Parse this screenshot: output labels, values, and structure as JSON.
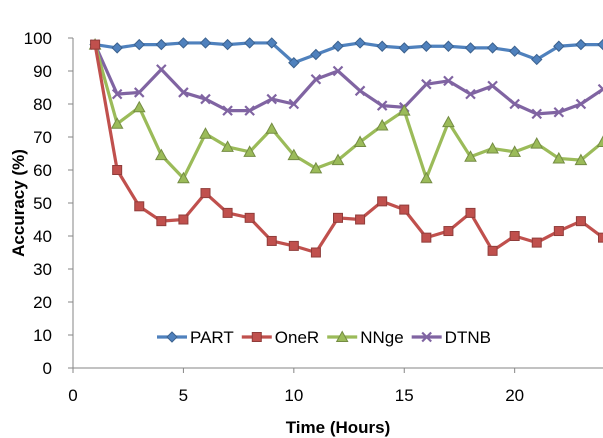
{
  "chart_data": {
    "type": "line",
    "title": "",
    "xlabel": "Time (Hours)",
    "ylabel": "Accuracy (%)",
    "xlim": [
      0,
      24
    ],
    "ylim": [
      0,
      100
    ],
    "xticks": [
      0,
      5,
      10,
      15,
      20
    ],
    "yticks": [
      0,
      10,
      20,
      30,
      40,
      50,
      60,
      70,
      80,
      90,
      100
    ],
    "grid": false,
    "legend": "inside-bottom",
    "x": [
      1,
      2,
      3,
      4,
      5,
      6,
      7,
      8,
      9,
      10,
      11,
      12,
      13,
      14,
      15,
      16,
      17,
      18,
      19,
      20,
      21,
      22,
      23,
      24
    ],
    "series": [
      {
        "name": "PART",
        "color": "#4f81bd",
        "marker": "diamond",
        "values": [
          98,
          97,
          98,
          98,
          98.5,
          98.5,
          98,
          98.5,
          98.5,
          92.5,
          95,
          97.5,
          98.5,
          97.5,
          97,
          97.5,
          97.5,
          97,
          97,
          96,
          93.5,
          97.5,
          98,
          98
        ]
      },
      {
        "name": "OneR",
        "color": "#c0504d",
        "marker": "square",
        "values": [
          98,
          60,
          49,
          44.5,
          45,
          53,
          47,
          45.5,
          38.5,
          37,
          35,
          45.5,
          45,
          50.5,
          48,
          39.5,
          41.5,
          47,
          35.5,
          40,
          38,
          41.5,
          44.5,
          39.5
        ]
      },
      {
        "name": "NNge",
        "color": "#9bbb59",
        "marker": "triangle",
        "values": [
          98,
          74,
          79,
          64.5,
          57.5,
          71,
          67,
          65.5,
          72.5,
          64.5,
          60.5,
          63,
          68.5,
          73.5,
          78,
          57.5,
          74.5,
          64,
          66.5,
          65.5,
          68,
          63.5,
          63,
          68.5
        ]
      },
      {
        "name": "DTNB",
        "color": "#8064a2",
        "marker": "x",
        "values": [
          98,
          83,
          83.5,
          90.5,
          83.5,
          81.5,
          78,
          78,
          81.5,
          80,
          87.5,
          90,
          84,
          79.5,
          79,
          86,
          87,
          83,
          85.5,
          80,
          77,
          77.5,
          80,
          84.5
        ]
      }
    ]
  }
}
